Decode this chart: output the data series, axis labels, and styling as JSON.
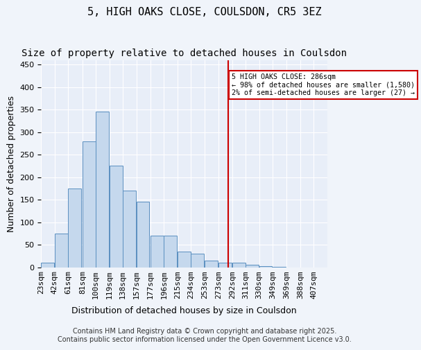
{
  "title": "5, HIGH OAKS CLOSE, COULSDON, CR5 3EZ",
  "subtitle": "Size of property relative to detached houses in Coulsdon",
  "xlabel": "Distribution of detached houses by size in Coulsdon",
  "ylabel": "Number of detached properties",
  "bin_labels": [
    "23sqm",
    "42sqm",
    "61sqm",
    "81sqm",
    "100sqm",
    "119sqm",
    "138sqm",
    "157sqm",
    "177sqm",
    "196sqm",
    "215sqm",
    "234sqm",
    "253sqm",
    "273sqm",
    "292sqm",
    "311sqm",
    "330sqm",
    "349sqm",
    "369sqm",
    "388sqm",
    "407sqm"
  ],
  "bin_edges": [
    23,
    42,
    61,
    81,
    100,
    119,
    138,
    157,
    177,
    196,
    215,
    234,
    253,
    273,
    292,
    311,
    330,
    349,
    369,
    388,
    407
  ],
  "bar_heights": [
    10,
    75,
    175,
    280,
    345,
    225,
    170,
    145,
    70,
    70,
    35,
    30,
    15,
    10,
    10,
    5,
    2,
    1,
    0,
    0
  ],
  "bar_color": "#c5d8ed",
  "bar_edge_color": "#5a8fc0",
  "property_value": 286,
  "vline_color": "#cc0000",
  "annotation_title": "5 HIGH OAKS CLOSE: 286sqm",
  "annotation_line1": "← 98% of detached houses are smaller (1,580)",
  "annotation_line2": "2% of semi-detached houses are larger (27) →",
  "annotation_box_color": "#cc0000",
  "ylim": [
    0,
    460
  ],
  "yticks": [
    0,
    50,
    100,
    150,
    200,
    250,
    300,
    350,
    400,
    450
  ],
  "background_color": "#f0f4fa",
  "plot_bg_color": "#e8eef8",
  "footer_line1": "Contains HM Land Registry data © Crown copyright and database right 2025.",
  "footer_line2": "Contains public sector information licensed under the Open Government Licence v3.0.",
  "title_fontsize": 11,
  "subtitle_fontsize": 10,
  "axis_label_fontsize": 9,
  "tick_fontsize": 8,
  "footer_fontsize": 7
}
